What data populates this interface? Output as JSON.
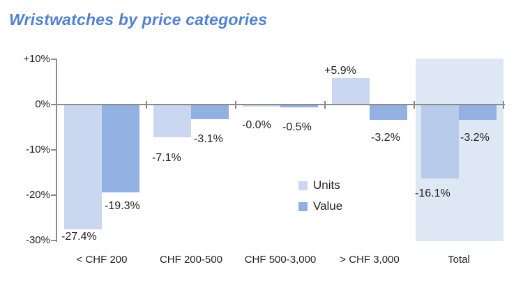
{
  "title": "Wristwatches by price categories",
  "colors": {
    "title": "#4f81d4",
    "axis": "#8a8a8a",
    "text": "#1f1f1f",
    "units": "#cbd7f0",
    "value": "#92b0e2",
    "units_highlight": "#b7cbea",
    "highlight_band": "#dee8f4",
    "background": "#ffffff"
  },
  "chart_data": {
    "type": "bar",
    "title": "Wristwatches by price categories",
    "categories": [
      "< CHF 200",
      "CHF 200-500",
      "CHF 500-3,000",
      "> CHF 3,000",
      "Total"
    ],
    "series": [
      {
        "name": "Units",
        "color": "#cbd7f0",
        "highlight_color": "#b7cbea",
        "values": [
          -27.4,
          -7.1,
          -0.0,
          5.9,
          -16.1
        ],
        "labels": [
          "-27.4%",
          "-7.1%",
          "-0.0%",
          "+5.9%",
          "-16.1%"
        ]
      },
      {
        "name": "Value",
        "color": "#92b0e2",
        "highlight_color": "#92b0e2",
        "values": [
          -19.3,
          -3.1,
          -0.5,
          -3.2,
          -3.2
        ],
        "labels": [
          "-19.3%",
          "-3.1%",
          "-0.5%",
          "-3.2%",
          "-3.2%"
        ]
      }
    ],
    "y_axis": {
      "range": [
        -30,
        10
      ],
      "unit": "%",
      "ticks": [
        {
          "label": "+10%",
          "value": 10
        },
        {
          "label": "0%",
          "value": 0
        },
        {
          "label": "-10%",
          "value": -10
        },
        {
          "label": "-20%",
          "value": -20
        },
        {
          "label": "-30%",
          "value": -30
        }
      ]
    },
    "legend": {
      "items": [
        "Units",
        "Value"
      ],
      "position": "center-right"
    },
    "highlighted_category": "Total",
    "grid": false,
    "data_labels_visible": true
  }
}
